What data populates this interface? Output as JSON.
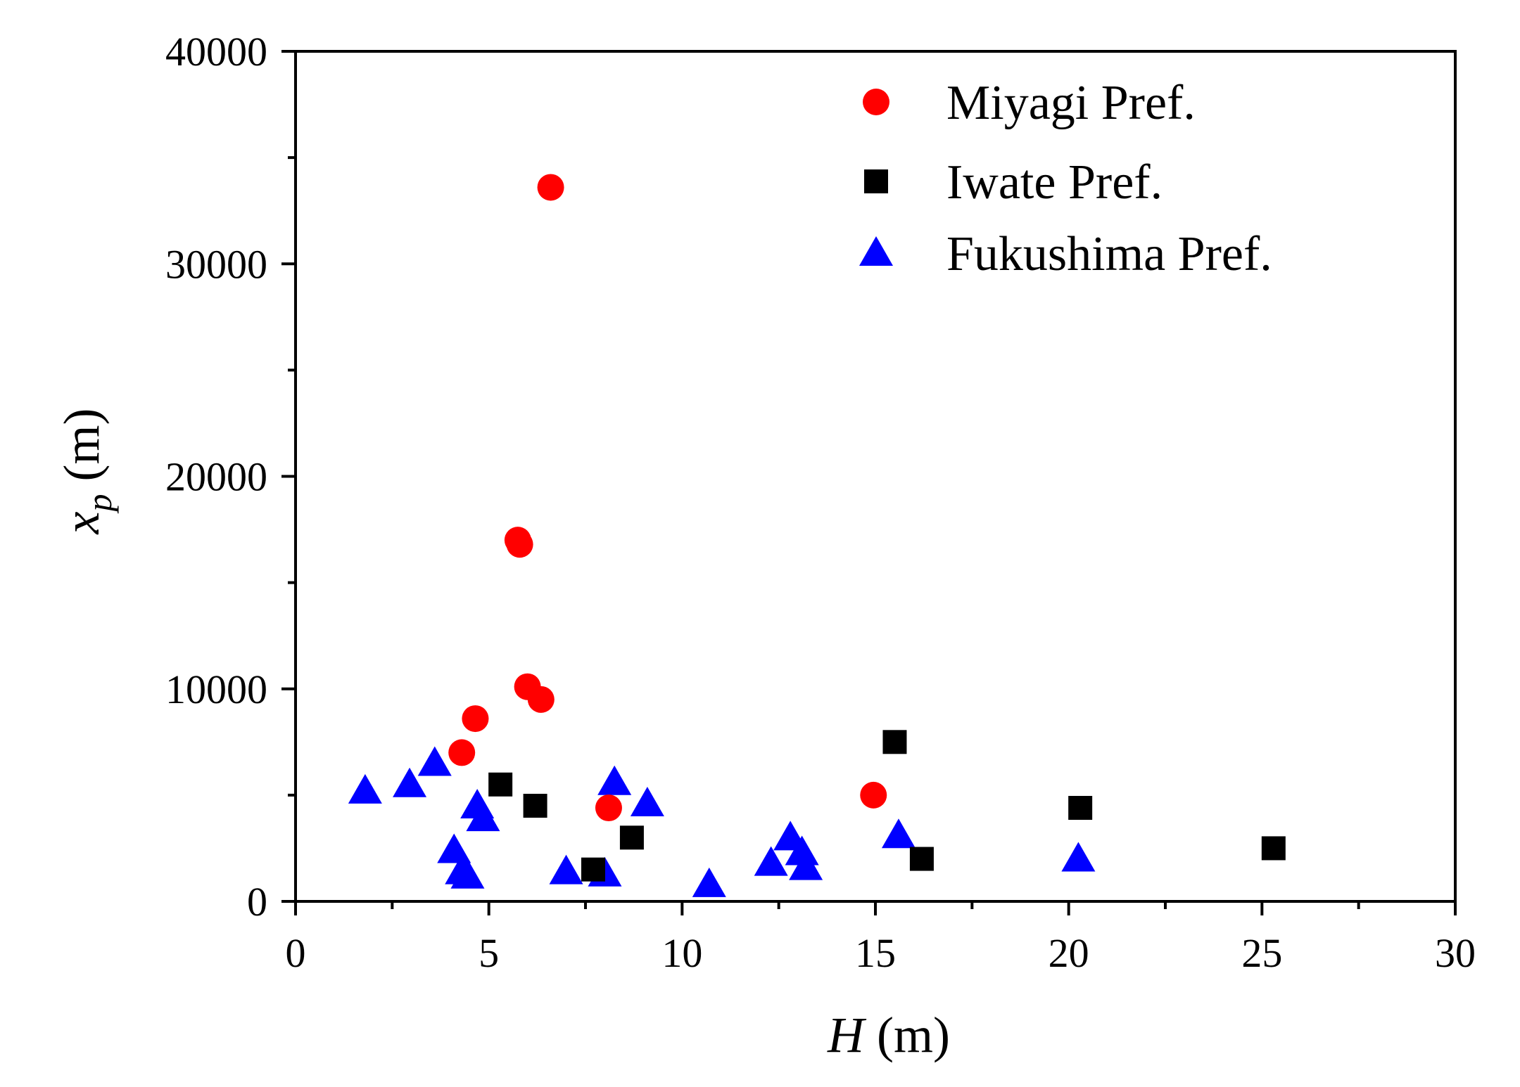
{
  "chart_data": {
    "type": "scatter",
    "title": "",
    "xlabel": {
      "var": "H",
      "unit": " (m)"
    },
    "ylabel": {
      "var": "x",
      "sub": "p",
      "unit": " (m)"
    },
    "xlim": [
      0,
      30
    ],
    "ylim": [
      0,
      40000
    ],
    "xticks": [
      0,
      5,
      10,
      15,
      20,
      25,
      30
    ],
    "yticks": [
      0,
      10000,
      20000,
      30000,
      40000
    ],
    "grid": false,
    "legend_position": "top-right",
    "series": [
      {
        "name": "Miyagi Pref.",
        "marker": "circle",
        "color": "#ff0000",
        "points": [
          [
            6.6,
            33600
          ],
          [
            5.8,
            16800
          ],
          [
            5.75,
            17000
          ],
          [
            6.0,
            10100
          ],
          [
            6.35,
            9500
          ],
          [
            4.65,
            8600
          ],
          [
            4.3,
            7000
          ],
          [
            8.1,
            4400
          ],
          [
            14.95,
            5000
          ]
        ]
      },
      {
        "name": "Iwate Pref.",
        "marker": "square",
        "color": "#000000",
        "points": [
          [
            5.3,
            5500
          ],
          [
            6.2,
            4500
          ],
          [
            7.7,
            1500
          ],
          [
            8.7,
            3000
          ],
          [
            15.5,
            7500
          ],
          [
            16.2,
            2000
          ],
          [
            20.3,
            4400
          ],
          [
            25.3,
            2500
          ]
        ]
      },
      {
        "name": "Fukushima Pref.",
        "marker": "triangle",
        "color": "#0000ff",
        "points": [
          [
            1.8,
            5200
          ],
          [
            2.95,
            5500
          ],
          [
            3.6,
            6500
          ],
          [
            4.7,
            4500
          ],
          [
            4.85,
            3900
          ],
          [
            4.1,
            2400
          ],
          [
            4.3,
            1400
          ],
          [
            4.45,
            1200
          ],
          [
            7.0,
            1400
          ],
          [
            8.0,
            1300
          ],
          [
            8.25,
            5600
          ],
          [
            9.1,
            4600
          ],
          [
            10.7,
            800
          ],
          [
            12.3,
            1800
          ],
          [
            12.8,
            3000
          ],
          [
            13.1,
            2300
          ],
          [
            13.2,
            1600
          ],
          [
            15.6,
            3100
          ],
          [
            20.25,
            2000
          ]
        ]
      }
    ]
  }
}
